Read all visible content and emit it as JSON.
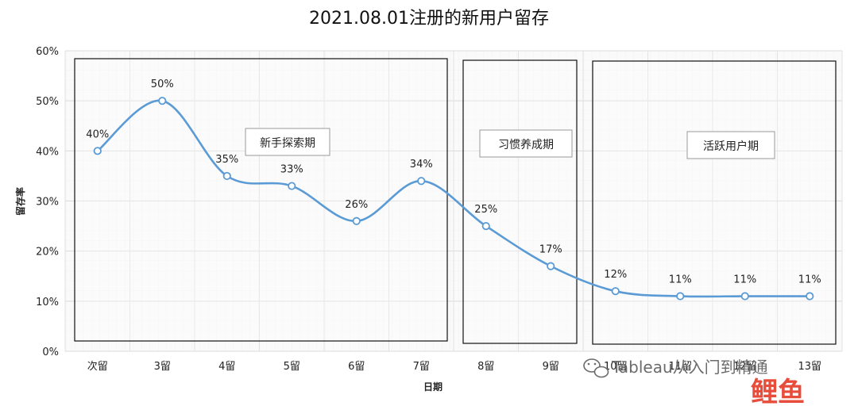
{
  "chart_data": {
    "type": "line",
    "title": "2021.08.01注册的新用户留存",
    "xlabel": "日期",
    "ylabel": "留存率",
    "categories": [
      "次留",
      "3留",
      "4留",
      "5留",
      "6留",
      "7留",
      "8留",
      "9留",
      "10留",
      "11留",
      "12留",
      "13留"
    ],
    "values": [
      40,
      50,
      35,
      33,
      26,
      34,
      25,
      17,
      12,
      11,
      11,
      11
    ],
    "data_labels": [
      "40%",
      "50%",
      "35%",
      "33%",
      "26%",
      "34%",
      "25%",
      "17%",
      "12%",
      "11%",
      "11%",
      "11%"
    ],
    "y_ticks": [
      "0%",
      "10%",
      "20%",
      "30%",
      "40%",
      "50%",
      "60%"
    ],
    "y_tick_values": [
      0,
      10,
      20,
      30,
      40,
      50,
      60
    ],
    "ylim": [
      0,
      60
    ],
    "grid": true,
    "line_color": "#5b9bd5",
    "phases": [
      {
        "label": "新手探索期",
        "start": 0,
        "end": 5
      },
      {
        "label": "习惯养成期",
        "start": 6,
        "end": 7
      },
      {
        "label": "活跃用户期",
        "start": 8,
        "end": 11
      }
    ]
  },
  "watermark": {
    "text": "Tableau从入门到精通",
    "brand": "鲤鱼"
  }
}
